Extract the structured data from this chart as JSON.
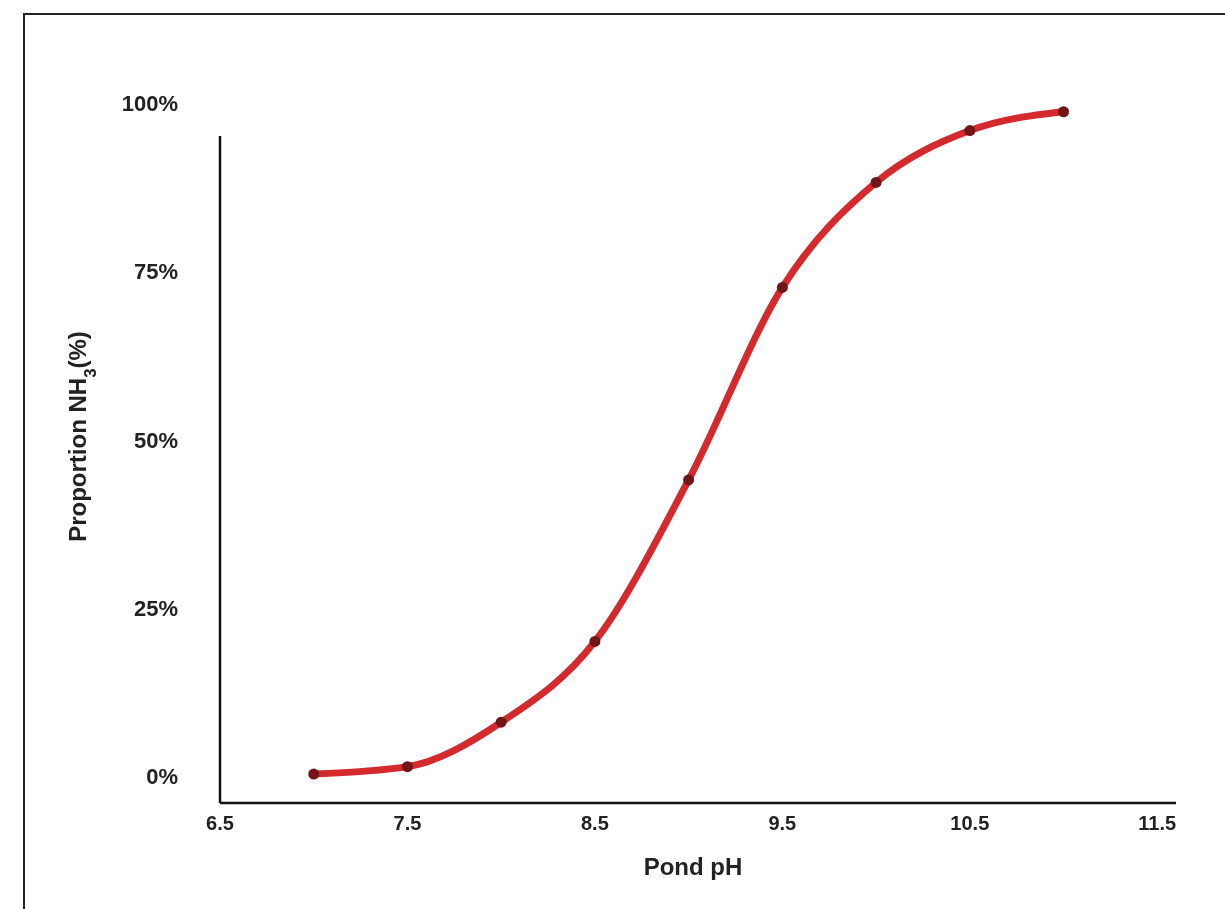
{
  "chart_data": {
    "type": "line",
    "xlabel": "Pond pH",
    "ylabel": "Proportion NH$_{3}$(%)",
    "x": [
      7.0,
      7.5,
      8.0,
      8.5,
      9.0,
      9.5,
      10.0,
      10.5,
      11.0
    ],
    "series": [
      {
        "color": "#d42a2e",
        "values": [
          0.3,
          1.4,
          8,
          20,
          44,
          72.6,
          88.2,
          95.9,
          98.7
        ]
      }
    ],
    "xlim": [
      6.5,
      11.6
    ],
    "xticks": [
      6.5,
      7.5,
      8.5,
      9.5,
      10.5,
      11.5
    ],
    "ylim": [
      -4,
      100
    ],
    "yticks": [
      {
        "value": 0,
        "label": "0%"
      },
      {
        "value": 25,
        "label": "25%"
      },
      {
        "value": 50,
        "label": "50%"
      },
      {
        "value": 75,
        "label": "75%"
      },
      {
        "value": 100,
        "label": "100%"
      }
    ],
    "marker": "circle",
    "grid": false
  }
}
